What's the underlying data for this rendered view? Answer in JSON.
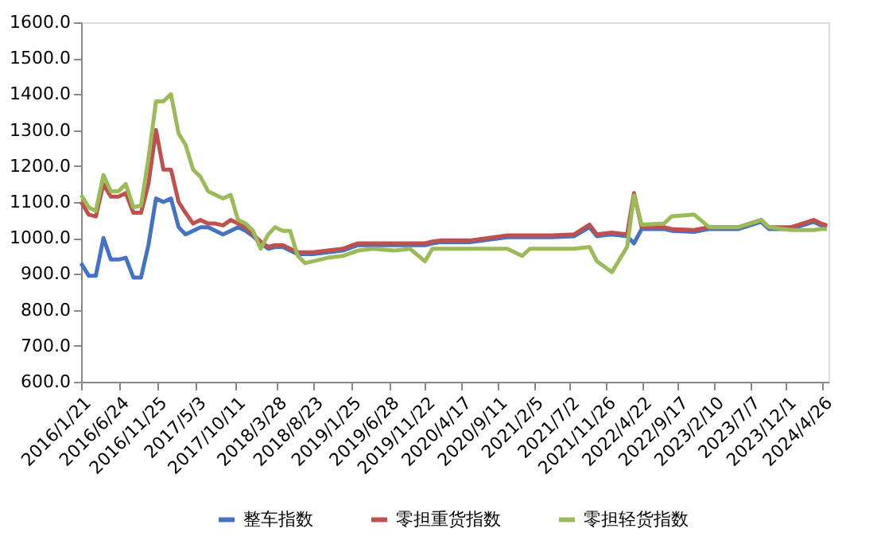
{
  "chart_data": {
    "type": "line",
    "legend": "bottom",
    "x": [
      "2016-01-21",
      "2016-02-21",
      "2016-03-21",
      "2016-04-21",
      "2016-05-21",
      "2016-06-21",
      "2016-07-21",
      "2016-08-21",
      "2016-09-21",
      "2016-10-21",
      "2016-11-21",
      "2016-12-21",
      "2017-01-21",
      "2017-02-21",
      "2017-03-21",
      "2017-04-21",
      "2017-05-21",
      "2017-06-21",
      "2017-07-21",
      "2017-08-21",
      "2017-09-21",
      "2017-10-21",
      "2017-11-21",
      "2017-12-21",
      "2018-01-21",
      "2018-02-21",
      "2018-03-21",
      "2018-04-21",
      "2018-05-21",
      "2018-06-21",
      "2018-07-21",
      "2018-08-21",
      "2018-10-21",
      "2018-12-21",
      "2019-02-21",
      "2019-04-21",
      "2019-07-21",
      "2019-09-21",
      "2019-11-21",
      "2019-12-21",
      "2020-01-21",
      "2020-05-21",
      "2020-10-21",
      "2020-12-21",
      "2021-01-21",
      "2021-04-21",
      "2021-07-21",
      "2021-09-21",
      "2021-10-21",
      "2021-12-21",
      "2022-02-21",
      "2022-03-21",
      "2022-04-21",
      "2022-07-21",
      "2022-08-21",
      "2022-11-21",
      "2023-01-21",
      "2023-05-21",
      "2023-08-21",
      "2023-09-21",
      "2023-12-21",
      "2024-03-21",
      "2024-04-21",
      "2024-05-15"
    ],
    "series": [
      {
        "name": "整车指数",
        "color": "#4472c4",
        "values": [
          930,
          895,
          895,
          1000,
          940,
          940,
          945,
          890,
          890,
          980,
          1110,
          1100,
          1110,
          1030,
          1010,
          1020,
          1030,
          1030,
          1020,
          1010,
          1020,
          1030,
          1020,
          1005,
          985,
          970,
          975,
          975,
          965,
          955,
          955,
          955,
          960,
          965,
          980,
          980,
          980,
          980,
          980,
          985,
          988,
          988,
          1002,
          1002,
          1002,
          1002,
          1005,
          1030,
          1005,
          1010,
          1005,
          985,
          1025,
          1025,
          1020,
          1017,
          1025,
          1025,
          1045,
          1025,
          1025,
          1045,
          1035,
          1030
        ]
      },
      {
        "name": "零担重货指数",
        "color": "#c0504d",
        "values": [
          1100,
          1065,
          1060,
          1150,
          1115,
          1115,
          1125,
          1070,
          1070,
          1150,
          1300,
          1190,
          1190,
          1100,
          1070,
          1040,
          1050,
          1040,
          1040,
          1035,
          1050,
          1040,
          1030,
          1010,
          990,
          975,
          980,
          980,
          970,
          960,
          960,
          960,
          965,
          970,
          985,
          985,
          985,
          985,
          985,
          990,
          993,
          993,
          1007,
          1007,
          1007,
          1007,
          1010,
          1037,
          1010,
          1015,
          1010,
          1125,
          1030,
          1030,
          1025,
          1022,
          1030,
          1030,
          1050,
          1030,
          1030,
          1050,
          1040,
          1035
        ]
      },
      {
        "name": "零担轻货指数",
        "color": "#9bbb59",
        "values": [
          1120,
          1085,
          1075,
          1175,
          1130,
          1130,
          1150,
          1085,
          1090,
          1220,
          1380,
          1380,
          1400,
          1290,
          1260,
          1190,
          1170,
          1130,
          1120,
          1110,
          1120,
          1050,
          1040,
          1020,
          970,
          1010,
          1030,
          1020,
          1020,
          950,
          930,
          935,
          945,
          950,
          965,
          970,
          965,
          970,
          935,
          970,
          970,
          970,
          970,
          950,
          970,
          970,
          970,
          975,
          935,
          905,
          975,
          1118,
          1037,
          1040,
          1060,
          1065,
          1030,
          1030,
          1050,
          1030,
          1022,
          1022,
          1025,
          1025
        ]
      }
    ],
    "xlim": [
      "2016-01-21",
      "2024-05-21"
    ],
    "xticks": [
      {
        "value": "2016-01-21",
        "label": "2016/1/21"
      },
      {
        "value": "2016-06-24",
        "label": "2016/6/24"
      },
      {
        "value": "2016-11-25",
        "label": "2016/11/25"
      },
      {
        "value": "2017-05-03",
        "label": "2017/5/3"
      },
      {
        "value": "2017-10-11",
        "label": "2017/10/11"
      },
      {
        "value": "2018-03-28",
        "label": "2018/3/28"
      },
      {
        "value": "2018-08-23",
        "label": "2018/8/23"
      },
      {
        "value": "2019-01-25",
        "label": "2019/1/25"
      },
      {
        "value": "2019-06-28",
        "label": "2019/6/28"
      },
      {
        "value": "2019-11-22",
        "label": "2019/11/22"
      },
      {
        "value": "2020-04-17",
        "label": "2020/4/17"
      },
      {
        "value": "2020-09-11",
        "label": "2020/9/11"
      },
      {
        "value": "2021-02-05",
        "label": "2021/2/5"
      },
      {
        "value": "2021-07-02",
        "label": "2021/7/2"
      },
      {
        "value": "2021-11-26",
        "label": "2021/11/26"
      },
      {
        "value": "2022-04-22",
        "label": "2022/4/22"
      },
      {
        "value": "2022-09-17",
        "label": "2022/9/17"
      },
      {
        "value": "2023-02-10",
        "label": "2023/2/10"
      },
      {
        "value": "2023-07-07",
        "label": "2023/7/7"
      },
      {
        "value": "2023-12-01",
        "label": "2023/12/1"
      },
      {
        "value": "2024-04-26",
        "label": "2024/4/26"
      }
    ],
    "ylim": [
      600,
      1600
    ],
    "yticks": [
      {
        "value": 600,
        "label": "600.0"
      },
      {
        "value": 700,
        "label": "700.0"
      },
      {
        "value": 800,
        "label": "800.0"
      },
      {
        "value": 900,
        "label": "900.0"
      },
      {
        "value": 1000,
        "label": "1000.0"
      },
      {
        "value": 1100,
        "label": "1100.0"
      },
      {
        "value": 1200,
        "label": "1200.0"
      },
      {
        "value": 1300,
        "label": "1300.0"
      },
      {
        "value": 1400,
        "label": "1400.0"
      },
      {
        "value": 1500,
        "label": "1500.0"
      },
      {
        "value": 1600,
        "label": "1600.0"
      }
    ]
  }
}
